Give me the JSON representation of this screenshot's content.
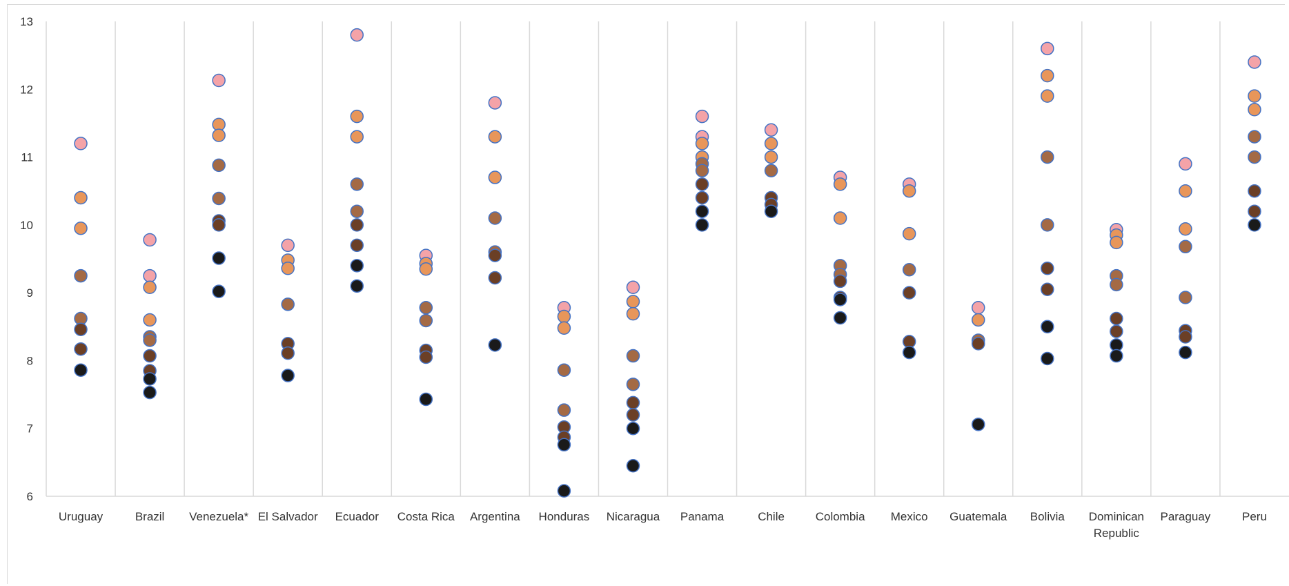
{
  "chart_data": {
    "type": "scatter",
    "title": "",
    "xlabel": "",
    "ylabel": "",
    "ylim": [
      6,
      13
    ],
    "yticks": [
      "6",
      "7",
      "8",
      "9",
      "10",
      "11",
      "12",
      "13"
    ],
    "grid": "vertical category separators",
    "legend": "none",
    "colors": {
      "marker_outline": "#4472c4",
      "shades": [
        "#f4a3a8",
        "#e8965a",
        "#a46a45",
        "#6b3f26",
        "#1a1a1a"
      ],
      "gridline": "#d9d9d9",
      "text": "#333333"
    },
    "categories": [
      {
        "name": "Uruguay",
        "values": [
          11.2,
          10.4,
          9.95,
          9.25,
          8.62,
          8.46,
          8.17,
          7.86
        ]
      },
      {
        "name": "Brazil",
        "values": [
          9.78,
          9.25,
          9.08,
          8.6,
          8.35,
          8.3,
          8.07,
          7.85,
          7.73,
          7.53
        ]
      },
      {
        "name": "Venezuela*",
        "values": [
          12.13,
          11.48,
          11.32,
          10.88,
          10.39,
          10.06,
          10.0,
          9.51,
          9.02
        ]
      },
      {
        "name": "El Salvador",
        "values": [
          9.7,
          9.48,
          9.36,
          8.83,
          8.25,
          8.11,
          7.78
        ]
      },
      {
        "name": "Ecuador",
        "values": [
          12.8,
          11.6,
          11.3,
          10.6,
          10.2,
          10.0,
          9.7,
          9.4,
          9.1
        ]
      },
      {
        "name": "Costa Rica",
        "values": [
          9.55,
          9.43,
          9.35,
          8.78,
          8.59,
          8.15,
          8.05,
          7.43
        ]
      },
      {
        "name": "Argentina",
        "values": [
          11.8,
          11.3,
          10.7,
          10.1,
          9.6,
          9.55,
          9.22,
          8.23
        ]
      },
      {
        "name": "Honduras",
        "values": [
          8.78,
          8.65,
          8.48,
          7.86,
          7.27,
          7.02,
          6.87,
          6.76,
          6.08
        ]
      },
      {
        "name": "Nicaragua",
        "values": [
          9.08,
          8.87,
          8.69,
          8.07,
          7.65,
          7.38,
          7.2,
          7.0,
          6.45
        ]
      },
      {
        "name": "Panama",
        "values": [
          11.6,
          11.3,
          11.2,
          11.0,
          10.9,
          10.8,
          10.6,
          10.4,
          10.2,
          10.0
        ]
      },
      {
        "name": "Chile",
        "values": [
          11.4,
          11.2,
          11.0,
          10.8,
          10.4,
          10.3,
          10.2
        ]
      },
      {
        "name": "Colombia",
        "values": [
          10.7,
          10.6,
          10.1,
          9.4,
          9.27,
          9.17,
          8.93,
          8.9,
          8.63
        ]
      },
      {
        "name": "Mexico",
        "values": [
          10.6,
          10.5,
          9.87,
          9.34,
          9.0,
          8.28,
          8.12
        ]
      },
      {
        "name": "Guatemala",
        "values": [
          8.78,
          8.6,
          8.3,
          8.25,
          7.06
        ]
      },
      {
        "name": "Bolivia",
        "values": [
          12.6,
          12.2,
          11.9,
          11.0,
          10.0,
          9.36,
          9.05,
          8.5,
          8.03
        ]
      },
      {
        "name": "Dominican Republic",
        "values": [
          9.93,
          9.85,
          9.74,
          9.25,
          9.12,
          8.62,
          8.43,
          8.23,
          8.07
        ]
      },
      {
        "name": "Paraguay",
        "values": [
          10.9,
          10.5,
          9.94,
          9.68,
          8.93,
          8.44,
          8.35,
          8.12
        ]
      },
      {
        "name": "Peru",
        "values": [
          12.4,
          11.9,
          11.7,
          11.3,
          11.0,
          10.5,
          10.2,
          10.0
        ]
      }
    ],
    "category_label_lines": [
      [
        "Uruguay"
      ],
      [
        "Brazil"
      ],
      [
        "Venezuela*"
      ],
      [
        "El Salvador"
      ],
      [
        "Ecuador"
      ],
      [
        "Costa Rica"
      ],
      [
        "Argentina"
      ],
      [
        "Honduras"
      ],
      [
        "Nicaragua"
      ],
      [
        "Panama"
      ],
      [
        "Chile"
      ],
      [
        "Colombia"
      ],
      [
        "Mexico"
      ],
      [
        "Guatemala"
      ],
      [
        "Bolivia"
      ],
      [
        "Dominican",
        "Republic"
      ],
      [
        "Paraguay"
      ],
      [
        "Peru"
      ]
    ]
  }
}
